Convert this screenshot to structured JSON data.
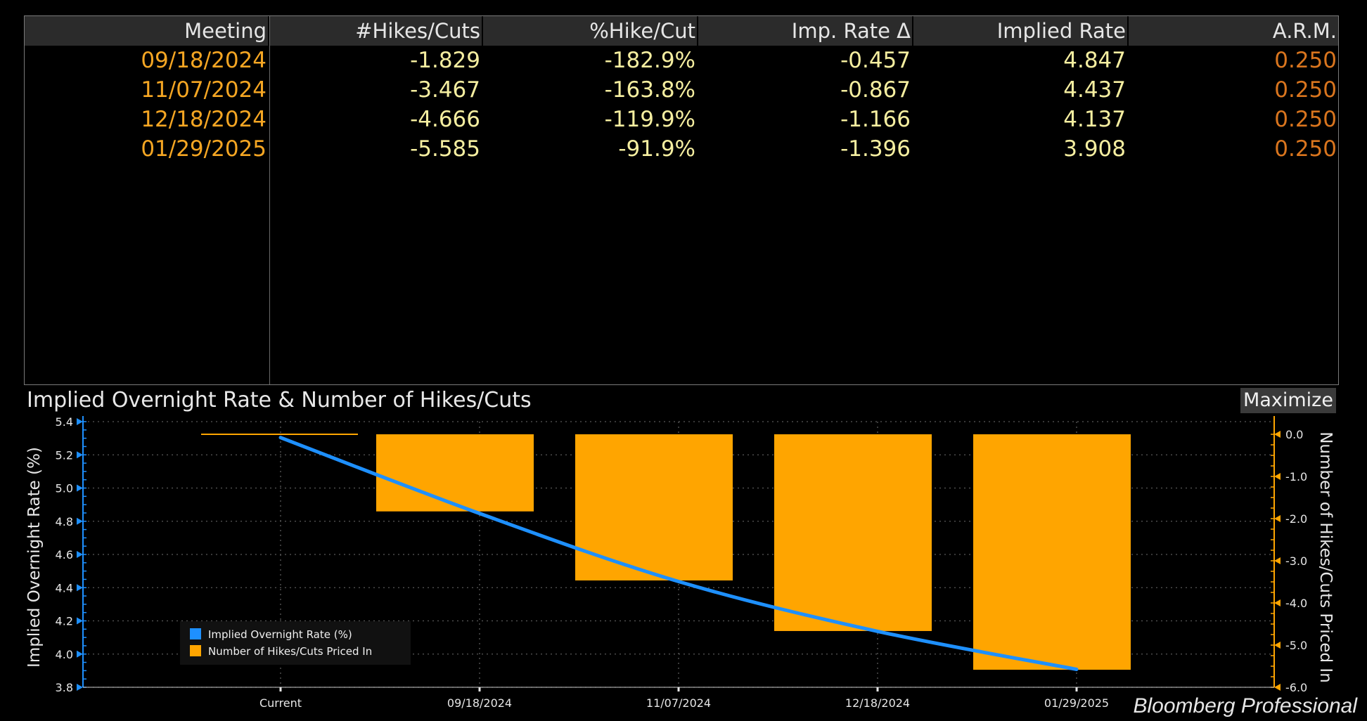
{
  "table": {
    "headers": [
      "Meeting",
      "#Hikes/Cuts",
      "%Hike/Cut",
      "Imp. Rate Δ",
      "Implied Rate",
      "A.R.M."
    ],
    "rows": [
      [
        "09/18/2024",
        "-1.829",
        "-182.9%",
        "-0.457",
        "4.847",
        "0.250"
      ],
      [
        "11/07/2024",
        "-3.467",
        "-163.8%",
        "-0.867",
        "4.437",
        "0.250"
      ],
      [
        "12/18/2024",
        "-4.666",
        "-119.9%",
        "-1.166",
        "4.137",
        "0.250"
      ],
      [
        "01/29/2025",
        "-5.585",
        "-91.9%",
        "-1.396",
        "3.908",
        "0.250"
      ]
    ]
  },
  "chart": {
    "title": "Implied Overnight Rate & Number of Hikes/Cuts",
    "maximize_label": "Maximize"
  },
  "chart_data": {
    "type": "bar",
    "categories": [
      "Current",
      "09/18/2024",
      "11/07/2024",
      "12/18/2024",
      "01/29/2025"
    ],
    "series": [
      {
        "name": "Implied Overnight Rate (%)",
        "type": "line",
        "axis": "left",
        "color": "#1e90ff",
        "values": [
          5.304,
          4.847,
          4.437,
          4.137,
          3.908
        ]
      },
      {
        "name": "Number of Hikes/Cuts Priced In",
        "type": "bar",
        "axis": "right",
        "color": "#ffa500",
        "values": [
          0,
          -1.829,
          -3.467,
          -4.666,
          -5.585
        ]
      }
    ],
    "ylabel": "Implied Overnight Rate (%)",
    "y2label": "Number of Hikes/Cuts Priced In",
    "ylim": [
      3.8,
      5.4
    ],
    "y2lim": [
      -6.0,
      0.3
    ],
    "yticks": [
      "5.4",
      "5.2",
      "5.0",
      "4.8",
      "4.6",
      "4.4",
      "4.2",
      "4.0",
      "3.8"
    ],
    "y2ticks": [
      "0.0",
      "-1.0",
      "-2.0",
      "-3.0",
      "-4.0",
      "-5.0",
      "-6.0"
    ],
    "grid": true,
    "legend": "bottom-left"
  },
  "footer": {
    "brand": "Bloomberg Professional"
  }
}
